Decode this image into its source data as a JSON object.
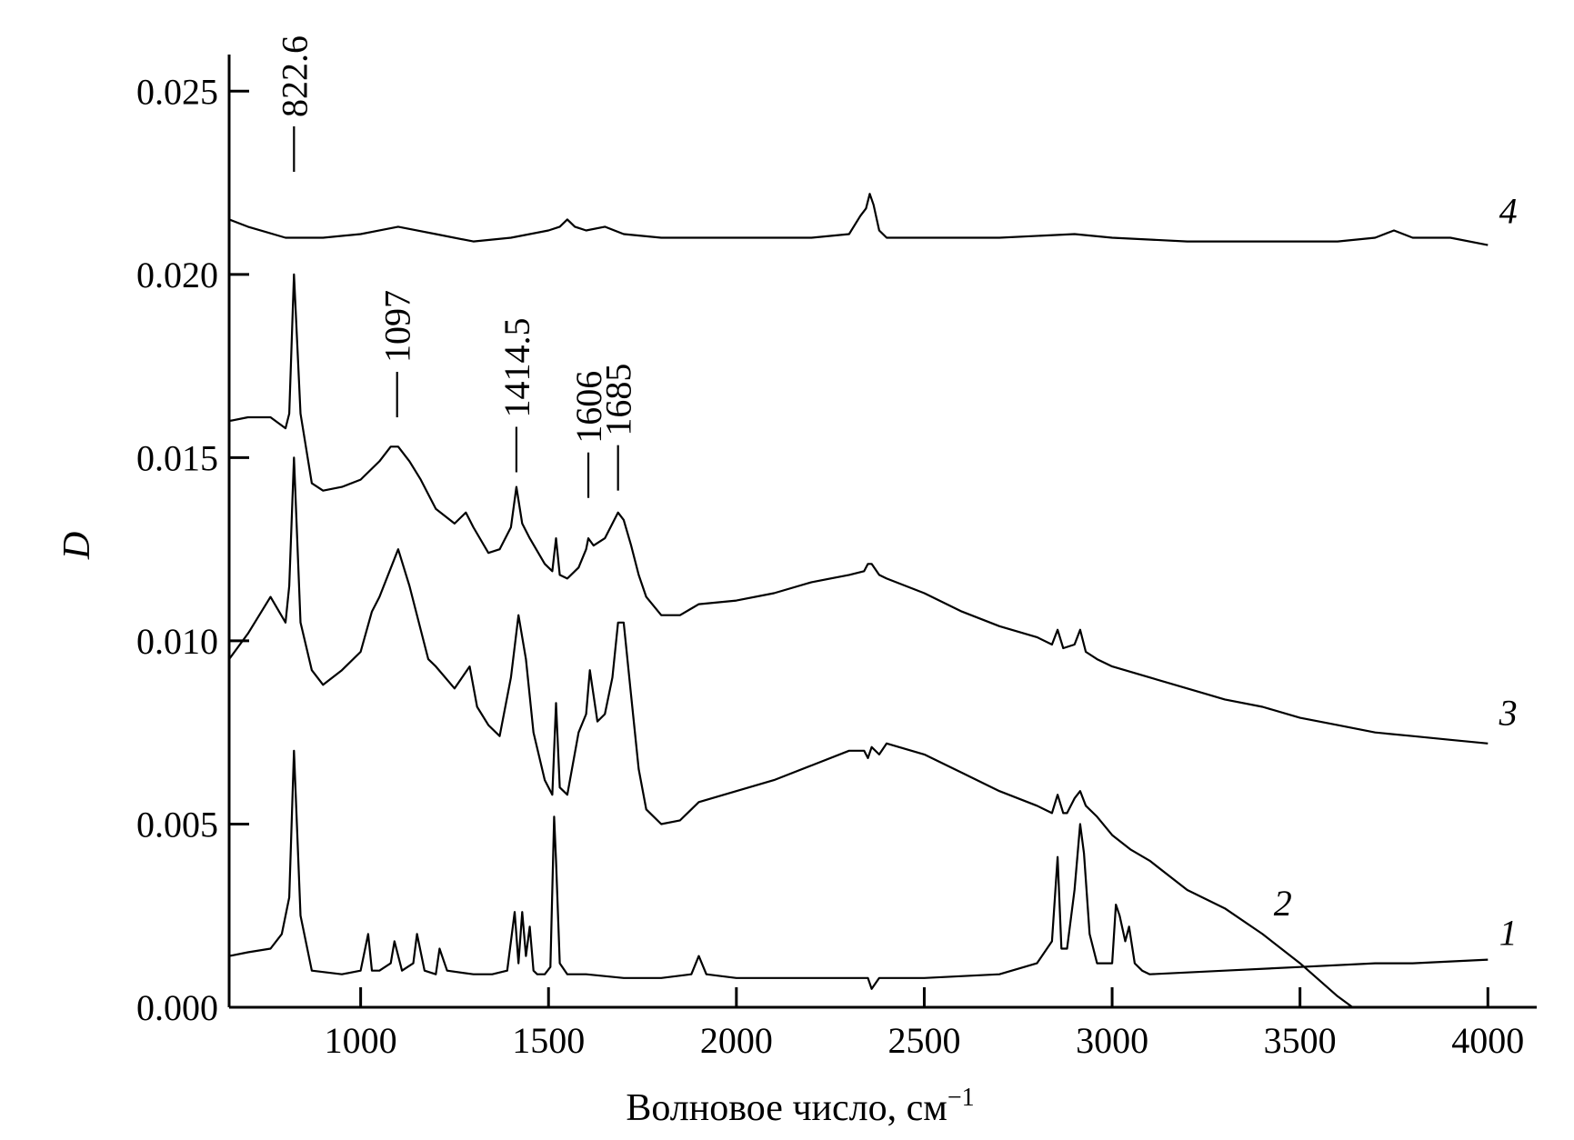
{
  "chart_data": {
    "type": "line",
    "title": "",
    "xlabel": "Волновое число, см",
    "xlabel_superscript": "−1",
    "ylabel": "D",
    "xlim": [
      650,
      4130
    ],
    "ylim": [
      0,
      0.026
    ],
    "x_ticks": [
      1000,
      1500,
      2000,
      2500,
      3000,
      3500,
      4000
    ],
    "x_tick_labels": [
      "1000",
      "1500",
      "2000",
      "2500",
      "3000",
      "3500",
      "4000"
    ],
    "y_ticks": [
      0,
      0.005,
      0.01,
      0.015,
      0.02,
      0.025
    ],
    "y_tick_labels": [
      "0.000",
      "0.005",
      "0.010",
      "0.015",
      "0.020",
      "0.025"
    ],
    "grid": false,
    "series": [
      {
        "name": "1",
        "x": [
          650,
          700,
          760,
          790,
          810,
          822.6,
          840,
          870,
          950,
          1000,
          1020,
          1030,
          1050,
          1080,
          1090,
          1110,
          1140,
          1150,
          1170,
          1200,
          1210,
          1230,
          1300,
          1350,
          1390,
          1410,
          1420,
          1430,
          1440,
          1450,
          1460,
          1470,
          1490,
          1505,
          1515,
          1520,
          1530,
          1550,
          1600,
          1700,
          1800,
          1880,
          1900,
          1920,
          2000,
          2200,
          2300,
          2350,
          2360,
          2380,
          2500,
          2700,
          2800,
          2840,
          2855,
          2865,
          2880,
          2900,
          2915,
          2925,
          2940,
          2960,
          3000,
          3010,
          3020,
          3035,
          3045,
          3060,
          3080,
          3100,
          3300,
          3500,
          3700,
          3800,
          4000
        ],
        "y": [
          0.0014,
          0.0015,
          0.0016,
          0.002,
          0.003,
          0.007,
          0.0025,
          0.001,
          0.0009,
          0.001,
          0.002,
          0.001,
          0.001,
          0.0012,
          0.0018,
          0.001,
          0.0012,
          0.002,
          0.001,
          0.0009,
          0.0016,
          0.001,
          0.0009,
          0.0009,
          0.001,
          0.0026,
          0.0012,
          0.0026,
          0.0014,
          0.0022,
          0.001,
          0.0009,
          0.0009,
          0.0011,
          0.0052,
          0.004,
          0.0012,
          0.0009,
          0.0009,
          0.0008,
          0.0008,
          0.0009,
          0.0014,
          0.0009,
          0.0008,
          0.0008,
          0.0008,
          0.0008,
          0.0005,
          0.0008,
          0.0008,
          0.0009,
          0.0012,
          0.0018,
          0.0041,
          0.0016,
          0.0016,
          0.0032,
          0.005,
          0.0042,
          0.002,
          0.0012,
          0.0012,
          0.0028,
          0.0025,
          0.0018,
          0.0022,
          0.0012,
          0.001,
          0.0009,
          0.001,
          0.0011,
          0.0012,
          0.0012,
          0.0013
        ]
      },
      {
        "name": "2",
        "x": [
          650,
          700,
          760,
          800,
          810,
          822.6,
          840,
          870,
          900,
          950,
          1000,
          1030,
          1050,
          1100,
          1130,
          1180,
          1200,
          1250,
          1290,
          1310,
          1340,
          1370,
          1400,
          1420,
          1440,
          1460,
          1490,
          1510,
          1520,
          1530,
          1550,
          1580,
          1600,
          1610,
          1630,
          1650,
          1670,
          1685,
          1700,
          1720,
          1740,
          1760,
          1800,
          1850,
          1900,
          2000,
          2100,
          2200,
          2300,
          2340,
          2350,
          2360,
          2380,
          2400,
          2500,
          2600,
          2700,
          2800,
          2840,
          2855,
          2870,
          2880,
          2900,
          2915,
          2930,
          2960,
          3000,
          3050,
          3100,
          3150,
          3200,
          3300,
          3400,
          3500,
          3600,
          3640
        ],
        "y": [
          0.0095,
          0.0102,
          0.0112,
          0.0105,
          0.0115,
          0.015,
          0.0105,
          0.0092,
          0.0088,
          0.0092,
          0.0097,
          0.0108,
          0.0112,
          0.0125,
          0.0115,
          0.0095,
          0.0093,
          0.0087,
          0.0093,
          0.0082,
          0.0077,
          0.0074,
          0.009,
          0.0107,
          0.0095,
          0.0075,
          0.0062,
          0.0058,
          0.0083,
          0.006,
          0.0058,
          0.0075,
          0.008,
          0.0092,
          0.0078,
          0.008,
          0.009,
          0.0105,
          0.0105,
          0.0085,
          0.0065,
          0.0054,
          0.005,
          0.0051,
          0.0056,
          0.0059,
          0.0062,
          0.0066,
          0.007,
          0.007,
          0.0068,
          0.0071,
          0.0069,
          0.0072,
          0.0069,
          0.0064,
          0.0059,
          0.0055,
          0.0053,
          0.0058,
          0.0053,
          0.0053,
          0.0057,
          0.0059,
          0.0055,
          0.0052,
          0.0047,
          0.0043,
          0.004,
          0.0036,
          0.0032,
          0.0027,
          0.002,
          0.0012,
          0.0003,
          0.0
        ]
      },
      {
        "name": "3",
        "x": [
          650,
          700,
          760,
          800,
          810,
          822.6,
          840,
          870,
          900,
          950,
          1000,
          1050,
          1080,
          1100,
          1130,
          1160,
          1200,
          1250,
          1280,
          1300,
          1340,
          1370,
          1400,
          1414.5,
          1430,
          1450,
          1490,
          1510,
          1520,
          1530,
          1550,
          1580,
          1600,
          1606,
          1620,
          1650,
          1685,
          1700,
          1720,
          1740,
          1760,
          1800,
          1850,
          1900,
          2000,
          2100,
          2200,
          2300,
          2340,
          2350,
          2360,
          2380,
          2400,
          2500,
          2600,
          2700,
          2800,
          2840,
          2855,
          2870,
          2900,
          2915,
          2930,
          2960,
          3000,
          3100,
          3200,
          3300,
          3400,
          3500,
          3600,
          3700,
          3800,
          3900,
          4000
        ],
        "y": [
          0.016,
          0.0161,
          0.0161,
          0.0158,
          0.0162,
          0.02,
          0.0162,
          0.0143,
          0.0141,
          0.0142,
          0.0144,
          0.0149,
          0.0153,
          0.0153,
          0.0149,
          0.0144,
          0.0136,
          0.0132,
          0.0135,
          0.0131,
          0.0124,
          0.0125,
          0.0131,
          0.0142,
          0.0132,
          0.0128,
          0.0121,
          0.0119,
          0.0128,
          0.0118,
          0.0117,
          0.012,
          0.0125,
          0.0128,
          0.0126,
          0.0128,
          0.0135,
          0.0133,
          0.0126,
          0.0118,
          0.0112,
          0.0107,
          0.0107,
          0.011,
          0.0111,
          0.0113,
          0.0116,
          0.0118,
          0.0119,
          0.0121,
          0.0121,
          0.0118,
          0.0117,
          0.0113,
          0.0108,
          0.0104,
          0.0101,
          0.0099,
          0.0103,
          0.0098,
          0.0099,
          0.0103,
          0.0097,
          0.0095,
          0.0093,
          0.009,
          0.0087,
          0.0084,
          0.0082,
          0.0079,
          0.0077,
          0.0075,
          0.0074,
          0.0073,
          0.0072
        ]
      },
      {
        "name": "4",
        "x": [
          650,
          700,
          800,
          900,
          1000,
          1100,
          1200,
          1300,
          1400,
          1500,
          1530,
          1550,
          1570,
          1600,
          1650,
          1700,
          1800,
          2000,
          2200,
          2300,
          2330,
          2345,
          2355,
          2365,
          2380,
          2400,
          2500,
          2700,
          2900,
          3000,
          3200,
          3400,
          3600,
          3700,
          3750,
          3800,
          3900,
          4000
        ],
        "y": [
          0.0215,
          0.0213,
          0.021,
          0.021,
          0.0211,
          0.0213,
          0.0211,
          0.0209,
          0.021,
          0.0212,
          0.0213,
          0.0215,
          0.0213,
          0.0212,
          0.0213,
          0.0211,
          0.021,
          0.021,
          0.021,
          0.0211,
          0.0216,
          0.0218,
          0.0222,
          0.0219,
          0.0212,
          0.021,
          0.021,
          0.021,
          0.0211,
          0.021,
          0.0209,
          0.0209,
          0.0209,
          0.021,
          0.0212,
          0.021,
          0.021,
          0.0208
        ]
      }
    ],
    "peak_annotations": [
      {
        "label": "822.6",
        "x": 822.6,
        "y": 0.0228
      },
      {
        "label": "1097",
        "x": 1097,
        "y": 0.0161
      },
      {
        "label": "1414.5",
        "x": 1414.5,
        "y": 0.0146
      },
      {
        "label": "1606",
        "x": 1606,
        "y": 0.0139
      },
      {
        "label": "1685",
        "x": 1685,
        "y": 0.0141
      }
    ],
    "series_label_positions": [
      {
        "label": "1",
        "x": 4030,
        "y": 0.0017
      },
      {
        "label": "2",
        "x": 3430,
        "y": 0.0025
      },
      {
        "label": "3",
        "x": 4030,
        "y": 0.0077
      },
      {
        "label": "4",
        "x": 4030,
        "y": 0.0214
      }
    ]
  }
}
